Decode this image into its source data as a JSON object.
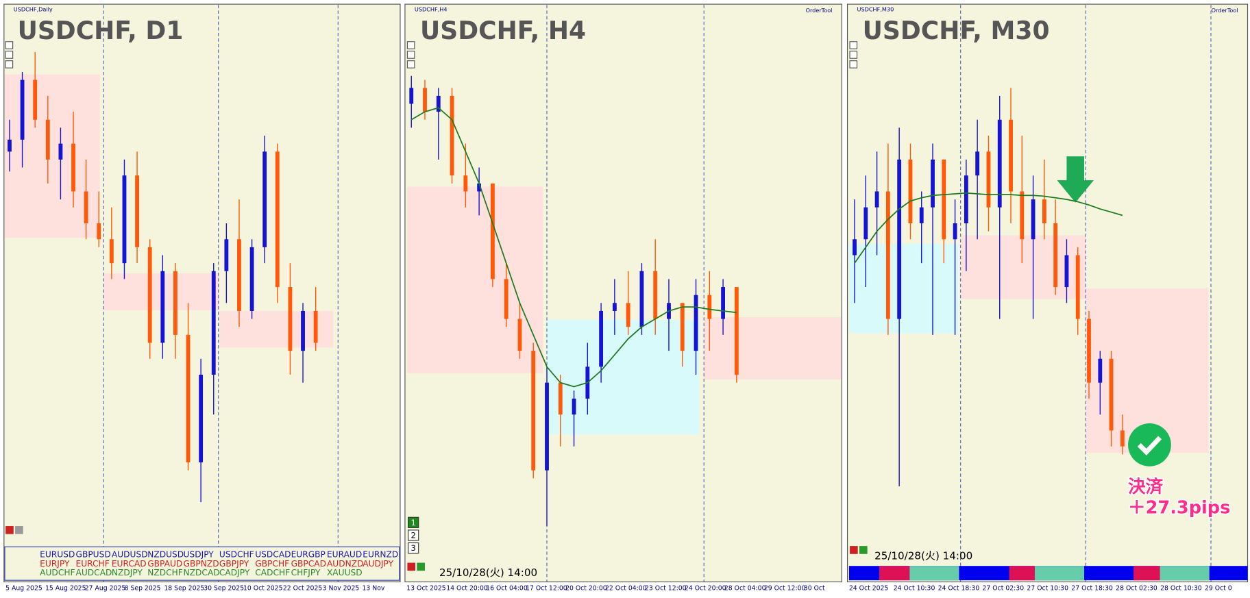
{
  "chart_data": [
    {
      "type": "candlestick",
      "title": "USDCHF, D1",
      "subtitle": "USDCHF,Daily",
      "xtick_labels": [
        "5 Aug 2025",
        "15 Aug 2025",
        "27 Aug 2025",
        "8 Sep 2025",
        "18 Sep 2025",
        "30 Sep 2025",
        "10 Oct 2025",
        "22 Oct 2025",
        "3 Nov 2025",
        "13 Nov"
      ],
      "up_color": "#1414d2",
      "down_color": "#ff5a0a",
      "ylim": [
        0.785,
        0.8165
      ],
      "open": [
        0.8095,
        0.81025,
        0.814,
        0.8115,
        0.809,
        0.81,
        0.807,
        0.805,
        0.804,
        0.8025,
        0.808,
        0.8035,
        0.7975,
        0.802,
        0.798,
        0.79,
        0.7955,
        0.802,
        0.804,
        0.7995,
        0.8035,
        0.8095,
        0.801,
        0.797,
        0.7995
      ],
      "high": [
        0.8115,
        0.8145,
        0.81575,
        0.813,
        0.811,
        0.812,
        0.809,
        0.807,
        0.806,
        0.809,
        0.8095,
        0.804,
        0.803,
        0.8025,
        0.8,
        0.7965,
        0.8025,
        0.805,
        0.8065,
        0.804,
        0.8105,
        0.81,
        0.8025,
        0.8,
        0.801
      ],
      "low": [
        0.80825,
        0.8085,
        0.811,
        0.8075,
        0.8065,
        0.806,
        0.804,
        0.8035,
        0.8015,
        0.8015,
        0.8025,
        0.7965,
        0.7965,
        0.7965,
        0.7895,
        0.7875,
        0.793,
        0.8,
        0.7985,
        0.799,
        0.8025,
        0.8,
        0.7955,
        0.795,
        0.797
      ],
      "close": [
        0.81025,
        0.814,
        0.8115,
        0.809,
        0.81,
        0.807,
        0.805,
        0.804,
        0.8025,
        0.808,
        0.8035,
        0.7975,
        0.802,
        0.798,
        0.79,
        0.7955,
        0.802,
        0.804,
        0.7995,
        0.8035,
        0.8095,
        0.801,
        0.797,
        0.7995,
        0.7975
      ]
    },
    {
      "type": "candlestick",
      "title": "USDCHF, H4",
      "subtitle": "USDCHF,H4",
      "tool": "OrderTool",
      "xtick_labels": [
        "13 Oct 2025",
        "14 Oct 20:00",
        "16 Oct 04:00",
        "17 Oct 12:00",
        "20 Oct 20:00",
        "22 Oct 04:00",
        "23 Oct 12:00",
        "24 Oct 20:00",
        "28 Oct 04:00",
        "29 Oct 12:00",
        "30 Oct"
      ],
      "up_color": "#1414d2",
      "down_color": "#ff5a0a",
      "ma_color": "#1e7a1e",
      "ylim": [
        0.785,
        0.8165
      ],
      "open": [
        0.8125,
        0.8135,
        0.812,
        0.813,
        0.808,
        0.807,
        0.8075,
        0.8015,
        0.799,
        0.797,
        0.7895,
        0.795,
        0.793,
        0.794,
        0.796,
        0.7995,
        0.8,
        0.7985,
        0.802,
        0.799,
        0.8,
        0.797,
        0.8005,
        0.799,
        0.801
      ],
      "high": [
        0.81425,
        0.814,
        0.8135,
        0.8135,
        0.81,
        0.8085,
        0.8075,
        0.8025,
        0.8,
        0.7975,
        0.796,
        0.7955,
        0.7945,
        0.7975,
        0.8,
        0.8015,
        0.802,
        0.8025,
        0.804,
        0.8015,
        0.8,
        0.8015,
        0.802,
        0.8015,
        0.801
      ],
      "low": [
        0.811,
        0.8115,
        0.809,
        0.8075,
        0.806,
        0.8055,
        0.801,
        0.7985,
        0.7965,
        0.789,
        0.786,
        0.791,
        0.791,
        0.793,
        0.795,
        0.798,
        0.798,
        0.798,
        0.798,
        0.797,
        0.796,
        0.7955,
        0.797,
        0.798,
        0.795
      ],
      "close": [
        0.8135,
        0.812,
        0.813,
        0.808,
        0.807,
        0.8075,
        0.8015,
        0.799,
        0.797,
        0.7895,
        0.795,
        0.793,
        0.794,
        0.796,
        0.7995,
        0.8,
        0.7985,
        0.802,
        0.799,
        0.8,
        0.797,
        0.8005,
        0.799,
        0.801,
        0.7955
      ],
      "ma": [
        0.8115,
        0.812,
        0.81225,
        0.8115,
        0.8095,
        0.8075,
        0.805,
        0.8025,
        0.8,
        0.798,
        0.796,
        0.795,
        0.79475,
        0.795,
        0.79575,
        0.79675,
        0.79775,
        0.7985,
        0.799,
        0.7995,
        0.79975,
        0.79975,
        0.7996,
        0.7995,
        0.7994
      ]
    },
    {
      "type": "candlestick",
      "title": "USDCHF, M30",
      "subtitle": "USDCHF,M30",
      "tool": "OrderTool",
      "xtick_labels": [
        "24 Oct 2025",
        "24 Oct 10:30",
        "24 Oct 18:30",
        "27 Oct 02:30",
        "27 Oct 10:30",
        "27 Oct 18:30",
        "28 Oct 02:30",
        "28 Oct 10:30",
        "29 Oct 0"
      ],
      "up_color": "#1414d2",
      "down_color": "#ff5a0a",
      "ma_color": "#1e7a1e",
      "ylim": [
        0.785,
        0.8165
      ],
      "open": [
        0.803,
        0.804,
        0.806,
        0.807,
        0.799,
        0.809,
        0.805,
        0.806,
        0.809,
        0.804,
        0.805,
        0.808,
        0.8095,
        0.806,
        0.8115,
        0.807,
        0.804,
        0.8065,
        0.805,
        0.801,
        0.803,
        0.799,
        0.795,
        0.7965,
        0.792
      ],
      "high": [
        0.8065,
        0.808,
        0.8095,
        0.81,
        0.811,
        0.81,
        0.807,
        0.81,
        0.809,
        0.8065,
        0.809,
        0.8115,
        0.8105,
        0.813,
        0.8135,
        0.8105,
        0.808,
        0.809,
        0.8065,
        0.804,
        0.8035,
        0.7995,
        0.797,
        0.797,
        0.793
      ],
      "low": [
        0.8,
        0.801,
        0.803,
        0.798,
        0.7885,
        0.804,
        0.8025,
        0.798,
        0.8025,
        0.798,
        0.802,
        0.804,
        0.8045,
        0.799,
        0.805,
        0.8025,
        0.799,
        0.804,
        0.8005,
        0.8,
        0.798,
        0.794,
        0.793,
        0.791,
        0.7905
      ],
      "close": [
        0.804,
        0.806,
        0.807,
        0.799,
        0.809,
        0.805,
        0.806,
        0.809,
        0.804,
        0.805,
        0.808,
        0.8095,
        0.806,
        0.8115,
        0.807,
        0.804,
        0.8065,
        0.805,
        0.801,
        0.803,
        0.799,
        0.795,
        0.7965,
        0.792,
        0.791
      ],
      "ma": [
        0.8025,
        0.8035,
        0.8045,
        0.80525,
        0.8059,
        0.8064,
        0.8066,
        0.80675,
        0.8068,
        0.80685,
        0.8069,
        0.80685,
        0.8068,
        0.8068,
        0.8068,
        0.80675,
        0.80675,
        0.8067,
        0.8066,
        0.8065,
        0.80635,
        0.80615,
        0.8059,
        0.8057,
        0.8055
      ]
    }
  ],
  "ui": {
    "symbols": [
      {
        "color": "#1a1aa8",
        "names": [
          "EURUSD",
          "GBPUSD",
          "AUDUSD",
          "NZDUSD",
          "USDJPY",
          "USDCHF",
          "USDCAD",
          "EURGBP",
          "EURAUD",
          "EURNZD"
        ]
      },
      {
        "color": "#d42020",
        "names": [
          "EURJPY",
          "EURCHF",
          "EURCAD",
          "GBPAUD",
          "GBPNZD",
          "GBPJPY",
          "GBPCHF",
          "GBPCAD",
          "AUDNZD",
          "AUDJPY"
        ]
      },
      {
        "color": "#2a8a2a",
        "names": [
          "AUDCHF",
          "AUDCAD",
          "NZDJPY",
          "NZDCHF",
          "NZDCAD",
          "CADJPY",
          "CADCHF",
          "CHFJPY",
          "XAUUSD"
        ]
      }
    ],
    "buttons": [
      "1",
      "2",
      "3"
    ],
    "timestamp_h4": "25/10/28(火) 14:00",
    "timestamp_m30": "25/10/28(火) 14:00",
    "exit_label": "決済",
    "exit_pips": "＋27.3pips"
  }
}
